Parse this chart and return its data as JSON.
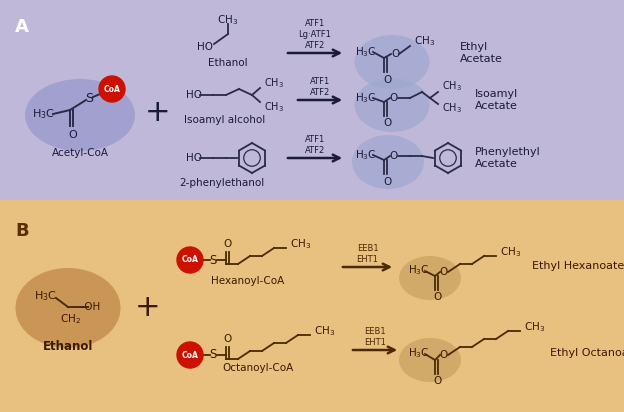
{
  "panel_A_bg": "#c0b8d8",
  "panel_B_bg": "#e8c080",
  "acetyl_coa_label": "Acetyl-CoA",
  "ethanol_label_A": "Ethanol",
  "isoamyl_label": "Isoamyl alcohol",
  "phenylethanol_label": "2-phenylethanol",
  "ethyl_acetate_label": "Ethyl\nAcetate",
  "isoamyl_acetate_label": "Isoamyl\nAcetate",
  "phenylethyl_acetate_label": "Phenylethyl\nAcetate",
  "arrow1_text": "ATF1\nLg·ATF1\nATF2",
  "arrow2_text": "ATF1\nATF2",
  "arrow3_text": "ATF1\nATF2",
  "ethanol_label_B": "Ethanol",
  "hexanoyl_label": "Hexanoyl-CoA",
  "octanoyl_label": "Octanoyl-CoA",
  "ethyl_hexanoate_label": "Ethyl Hexanoate",
  "ethyl_octanoate_label": "Ethyl Octanoate",
  "arrow4_text": "EEB1\nEHT1",
  "arrow5_text": "EEB1\nEHT1",
  "coa_color": "#cc1100",
  "coa_text_color": "#ffffff",
  "ellipse_acetyl_color": "#9898cc",
  "ellipse_ethanol_B_color": "#c08848",
  "product_ellipse_A_color": "#a0a8d0",
  "product_ellipse_B_color": "#c8a060",
  "line_color_A": "#2a2a4a",
  "line_color_B": "#4a2a00",
  "text_color_A": "#1a1a3a",
  "text_color_B": "#3a1a00",
  "label_A_color": "#ffffff",
  "label_B_color": "#5a3000"
}
